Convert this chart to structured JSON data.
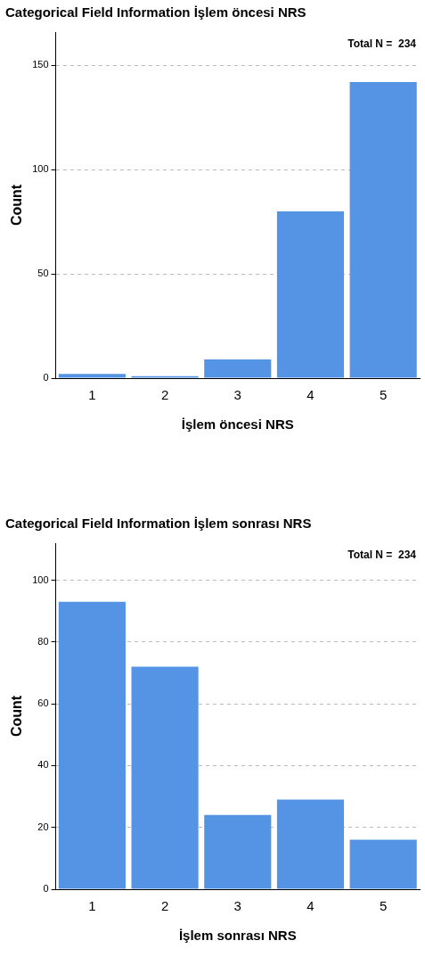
{
  "chart_data": [
    {
      "type": "bar",
      "title": "Categorical Field Information İşlem öncesi NRS",
      "xlabel": "İşlem öncesi NRS",
      "ylabel": "Count",
      "categories": [
        "1",
        "2",
        "3",
        "4",
        "5"
      ],
      "values": [
        2,
        1,
        9,
        80,
        142
      ],
      "color": "#5594e4",
      "ylim": [
        0,
        166
      ],
      "yticks": [
        0,
        50,
        100,
        150
      ],
      "grid": "y",
      "annotations": [
        "Total N =  234"
      ]
    },
    {
      "type": "bar",
      "title": "Categorical Field Information İşlem sonrası NRS",
      "xlabel": "İşlem sonrası NRS",
      "ylabel": "Count",
      "categories": [
        "1",
        "2",
        "3",
        "4",
        "5"
      ],
      "values": [
        93,
        72,
        24,
        29,
        16
      ],
      "color": "#5594e4",
      "ylim": [
        0,
        112
      ],
      "yticks": [
        0,
        20,
        40,
        60,
        80,
        100
      ],
      "grid": "y",
      "annotations": [
        "Total N =  234"
      ]
    }
  ]
}
